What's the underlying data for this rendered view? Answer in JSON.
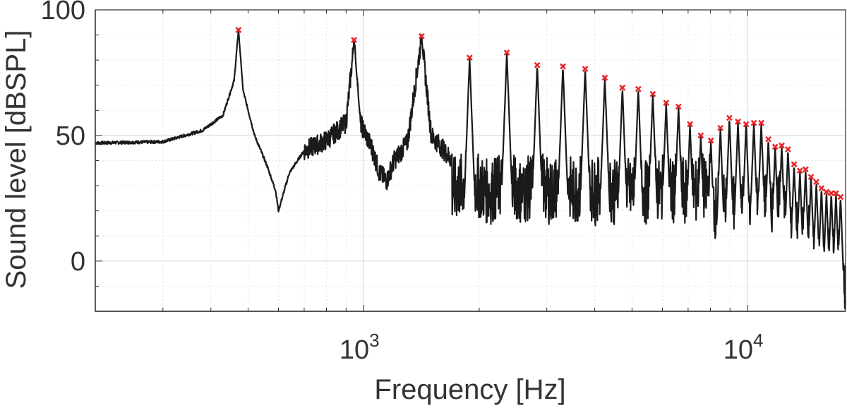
{
  "chart_data": {
    "type": "line",
    "xlabel": "Frequency [Hz]",
    "ylabel": "Sound level [dBSPL]",
    "x_scale": "log",
    "xlim": [
      200,
      18000
    ],
    "ylim": [
      -20,
      100
    ],
    "y_ticks": [
      {
        "value": 0,
        "label": "0"
      },
      {
        "value": 50,
        "label": "50"
      },
      {
        "value": 100,
        "label": "100"
      }
    ],
    "x_ticks": [
      {
        "value": 1000,
        "base": "10",
        "exp": "3"
      },
      {
        "value": 10000,
        "base": "10",
        "exp": "4"
      }
    ],
    "grid": true,
    "minor_grid": true,
    "line_color": "#1a1a1a",
    "marker_color": "#e8282a",
    "baseline_level": 47,
    "fundamental_hz": 472,
    "series": [
      {
        "type": "line",
        "x": [
          200,
          300,
          380,
          430,
          460,
          472,
          485,
          520,
          560,
          590,
          600,
          640,
          700,
          800,
          900,
          944,
          980,
          1050,
          1100,
          1150,
          1200,
          1300,
          1416,
          1500,
          1600,
          1700,
          1800,
          1888,
          2000,
          2360,
          2832,
          3304,
          3776,
          4248,
          4720,
          5192,
          5664,
          6136,
          6608,
          7080,
          7552,
          8024,
          8496,
          8968,
          9440,
          9912,
          10384,
          10856,
          11328,
          11800,
          12272,
          12744,
          13216,
          13688,
          14160,
          14632,
          15104,
          15576,
          16048,
          16520,
          16992,
          17464,
          18000
        ],
        "y": [
          47,
          47.5,
          52,
          58,
          72,
          92,
          68,
          50,
          38,
          28,
          20,
          35,
          44,
          48,
          55,
          87,
          55,
          45,
          35,
          32,
          40,
          47,
          89,
          50,
          45,
          40,
          38,
          81,
          30,
          83,
          78,
          77,
          76,
          73,
          69,
          68,
          66,
          63,
          61,
          54,
          50,
          48,
          52,
          57,
          55,
          54,
          55,
          54,
          48,
          45,
          46,
          44,
          38,
          36,
          36,
          33,
          31,
          29,
          28,
          27,
          26,
          25,
          8
        ]
      },
      {
        "type": "scatter",
        "x": [
          472,
          944,
          1416,
          1888,
          2360,
          2832,
          3304,
          3776,
          4248,
          4720,
          5192,
          5664,
          6136,
          6608,
          7080,
          7552,
          8024,
          8496,
          8968,
          9440,
          9912,
          10384,
          10856,
          11328,
          11800,
          12272,
          12744,
          13216,
          13688,
          14160,
          14632,
          15104,
          15576,
          16048,
          16520,
          16992,
          17464
        ],
        "y": [
          92,
          88,
          89.5,
          81,
          83,
          78,
          77.5,
          76.5,
          73,
          69,
          68.5,
          66.5,
          63,
          61.5,
          54.5,
          50,
          48,
          53,
          57,
          55.5,
          54.5,
          55,
          55,
          48.5,
          45.5,
          46,
          44.5,
          38.5,
          36,
          36.5,
          33.5,
          31.5,
          29,
          27.5,
          27,
          27,
          25.5
        ]
      }
    ]
  }
}
